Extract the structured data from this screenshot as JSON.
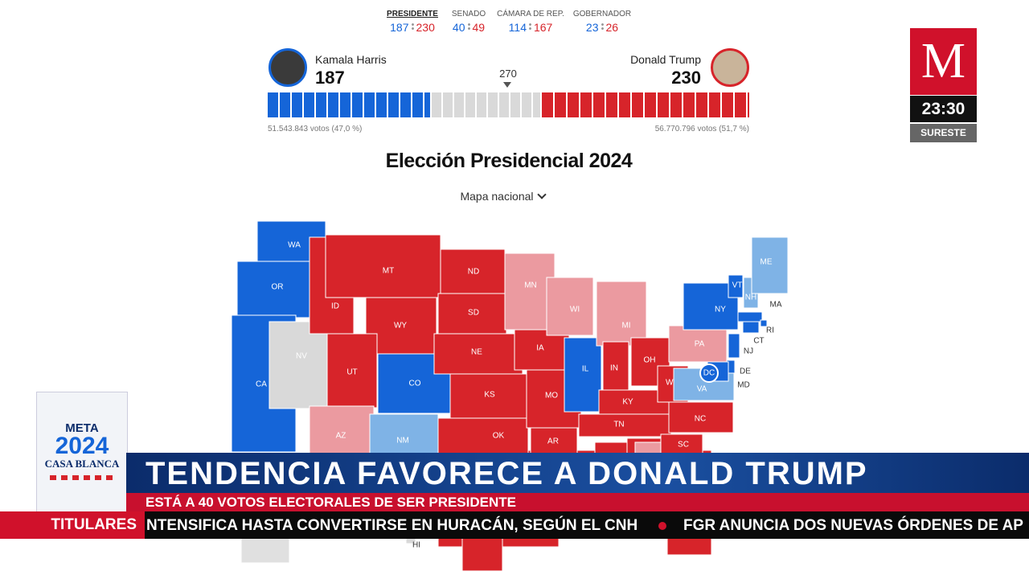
{
  "tabs": [
    {
      "label": "PRESIDENTE",
      "dem": "187",
      "rep": "230"
    },
    {
      "label": "SENADO",
      "dem": "40",
      "rep": "49"
    },
    {
      "label": "CÁMARA DE REP.",
      "dem": "114",
      "rep": "167"
    },
    {
      "label": "GOBERNADOR",
      "dem": "23",
      "rep": "26"
    }
  ],
  "harris": {
    "name": "Kamala Harris",
    "votes": "187",
    "popular": "51.543.843 votos (47,0 %)"
  },
  "trump": {
    "name": "Donald Trump",
    "votes": "230",
    "popular": "56.770.796 votos (51,7 %)"
  },
  "threshold": "270",
  "title": "Elección Presidencial 2024",
  "map_selector": "Mapa nacional",
  "states": [
    {
      "label": "WA",
      "color": "#1565d8"
    },
    {
      "label": "OR",
      "color": "#1565d8"
    },
    {
      "label": "CA",
      "color": "#1565d8"
    },
    {
      "label": "NV",
      "color": "#d9d9d9"
    },
    {
      "label": "ID",
      "color": "#d7242a"
    },
    {
      "label": "MT",
      "color": "#d7242a"
    },
    {
      "label": "WY",
      "color": "#d7242a"
    },
    {
      "label": "UT",
      "color": "#d7242a"
    },
    {
      "label": "AZ",
      "color": "#eb9aa0"
    },
    {
      "label": "CO",
      "color": "#1565d8"
    },
    {
      "label": "NM",
      "color": "#7fb3e6"
    },
    {
      "label": "ND",
      "color": "#d7242a"
    },
    {
      "label": "SD",
      "color": "#d7242a"
    },
    {
      "label": "NE",
      "color": "#d7242a"
    },
    {
      "label": "KS",
      "color": "#d7242a"
    },
    {
      "label": "OK",
      "color": "#d7242a"
    },
    {
      "label": "MN",
      "color": "#eb9aa0"
    },
    {
      "label": "IA",
      "color": "#d7242a"
    },
    {
      "label": "MO",
      "color": "#d7242a"
    },
    {
      "label": "AR",
      "color": "#d7242a"
    },
    {
      "label": "WI",
      "color": "#eb9aa0"
    },
    {
      "label": "IL",
      "color": "#1565d8"
    },
    {
      "label": "MI",
      "color": "#eb9aa0"
    },
    {
      "label": "IN",
      "color": "#d7242a"
    },
    {
      "label": "OH",
      "color": "#d7242a"
    },
    {
      "label": "KY",
      "color": "#d7242a"
    },
    {
      "label": "TN",
      "color": "#d7242a"
    },
    {
      "label": "WV",
      "color": "#d7242a"
    },
    {
      "label": "VA",
      "color": "#7fb3e6"
    },
    {
      "label": "NC",
      "color": "#d7242a"
    },
    {
      "label": "SC",
      "color": "#d7242a"
    },
    {
      "label": "PA",
      "color": "#eb9aa0"
    },
    {
      "label": "NY",
      "color": "#1565d8"
    },
    {
      "label": "VT",
      "color": "#1565d8"
    },
    {
      "label": "NH",
      "color": "#7fb3e6"
    },
    {
      "label": "ME",
      "color": "#7fb3e6"
    },
    {
      "label": "MA",
      "color": "#1565d8"
    },
    {
      "label": "RI",
      "color": "#1565d8"
    },
    {
      "label": "CT",
      "color": "#1565d8"
    },
    {
      "label": "NJ",
      "color": "#1565d8"
    },
    {
      "label": "DE",
      "color": "#1565d8"
    },
    {
      "label": "MD",
      "color": "#1565d8"
    },
    {
      "label": "DC",
      "color": "#1565d8"
    },
    {
      "label": "HI",
      "color": "#d9d9d9"
    }
  ],
  "logo": {
    "letter": "M",
    "time": "23:30",
    "region": "SURESTE"
  },
  "badge": {
    "line1": "META",
    "line2": "2024",
    "line3": "CASA BLANCA"
  },
  "banner": {
    "headline": "TENDENCIA FAVORECE A DONALD TRUMP",
    "subhead": "ESTÁ A 40 VOTOS ELECTORALES DE SER PRESIDENTE"
  },
  "ticker": {
    "label": "TITULARES",
    "items": [
      "NTENSIFICA HASTA CONVERTIRSE EN HURACÁN, SEGÚN EL CNH",
      "FGR ANUNCIA DOS NUEVAS ÓRDENES DE AP"
    ]
  }
}
